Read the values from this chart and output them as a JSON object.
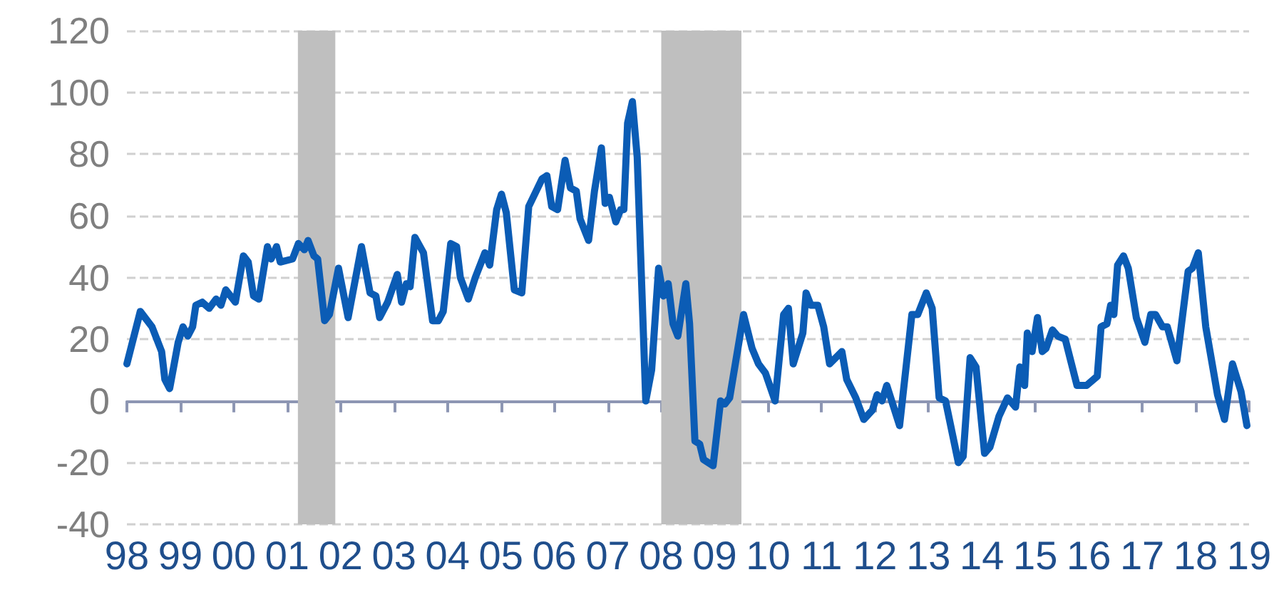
{
  "chart_data": {
    "type": "line",
    "xlim": [
      1998,
      2019
    ],
    "xticks": [
      {
        "value": 1998,
        "label": "98"
      },
      {
        "value": 1999,
        "label": "99"
      },
      {
        "value": 2000,
        "label": "00"
      },
      {
        "value": 2001,
        "label": "01"
      },
      {
        "value": 2002,
        "label": "02"
      },
      {
        "value": 2003,
        "label": "03"
      },
      {
        "value": 2004,
        "label": "04"
      },
      {
        "value": 2005,
        "label": "05"
      },
      {
        "value": 2006,
        "label": "06"
      },
      {
        "value": 2007,
        "label": "07"
      },
      {
        "value": 2008,
        "label": "08"
      },
      {
        "value": 2009,
        "label": "09"
      },
      {
        "value": 2010,
        "label": "10"
      },
      {
        "value": 2011,
        "label": "11"
      },
      {
        "value": 2012,
        "label": "12"
      },
      {
        "value": 2013,
        "label": "13"
      },
      {
        "value": 2014,
        "label": "14"
      },
      {
        "value": 2015,
        "label": "15"
      },
      {
        "value": 2016,
        "label": "16"
      },
      {
        "value": 2017,
        "label": "17"
      },
      {
        "value": 2018,
        "label": "18"
      },
      {
        "value": 2019,
        "label": "19"
      }
    ],
    "ylim": [
      -40,
      120
    ],
    "yticks": [
      -40,
      -20,
      0,
      20,
      40,
      60,
      80,
      100,
      120
    ],
    "grid": "y",
    "marker": "none",
    "line_style": "solid",
    "bands": [
      {
        "axis": "x",
        "from": 2001.2,
        "to": 2001.9,
        "color": "#bfbfbf"
      },
      {
        "axis": "x",
        "from": 2008.0,
        "to": 2009.5,
        "color": "#bfbfbf"
      }
    ],
    "series": [
      {
        "color": "#0b5cb5",
        "x": [
          1998.0,
          1998.25,
          1998.47,
          1998.65,
          1998.71,
          1998.8,
          1998.96,
          1999.05,
          1999.14,
          1999.23,
          1999.29,
          1999.41,
          1999.54,
          1999.67,
          1999.76,
          1999.85,
          2000.03,
          2000.18,
          2000.27,
          2000.37,
          2000.47,
          2000.63,
          2000.7,
          2000.8,
          2000.87,
          2001.1,
          2001.21,
          2001.32,
          2001.39,
          2001.5,
          2001.57,
          2001.7,
          2001.79,
          2001.96,
          2002.14,
          2002.39,
          2002.55,
          2002.66,
          2002.73,
          2002.88,
          2003.06,
          2003.14,
          2003.23,
          2003.3,
          2003.39,
          2003.55,
          2003.72,
          2003.83,
          2003.92,
          2004.06,
          2004.17,
          2004.24,
          2004.39,
          2004.52,
          2004.7,
          2004.79,
          2004.92,
          2005.01,
          2005.1,
          2005.25,
          2005.39,
          2005.52,
          2005.77,
          2005.86,
          2005.95,
          2006.06,
          2006.2,
          2006.3,
          2006.41,
          2006.48,
          2006.64,
          2006.75,
          2006.88,
          2006.95,
          2007.03,
          2007.15,
          2007.24,
          2007.3,
          2007.37,
          2007.46,
          2007.55,
          2007.71,
          2007.82,
          2007.95,
          2008.04,
          2008.13,
          2008.22,
          2008.31,
          2008.46,
          2008.53,
          2008.63,
          2008.72,
          2008.79,
          2008.97,
          2009.11,
          2009.19,
          2009.28,
          2009.54,
          2009.7,
          2009.82,
          2009.95,
          2010.13,
          2010.29,
          2010.38,
          2010.47,
          2010.65,
          2010.71,
          2010.8,
          2010.93,
          2011.04,
          2011.15,
          2011.38,
          2011.47,
          2011.64,
          2011.79,
          2011.95,
          2012.04,
          2012.13,
          2012.22,
          2012.46,
          2012.69,
          2012.8,
          2012.96,
          2013.07,
          2013.2,
          2013.32,
          2013.56,
          2013.65,
          2013.78,
          2013.89,
          2014.05,
          2014.15,
          2014.32,
          2014.48,
          2014.63,
          2014.71,
          2014.8,
          2014.85,
          2014.94,
          2015.04,
          2015.13,
          2015.2,
          2015.32,
          2015.42,
          2015.56,
          2015.78,
          2015.96,
          2016.16,
          2016.23,
          2016.34,
          2016.41,
          2016.47,
          2016.54,
          2016.65,
          2016.74,
          2016.89,
          2017.05,
          2017.16,
          2017.25,
          2017.38,
          2017.47,
          2017.65,
          2017.86,
          2017.94,
          2018.05,
          2018.19,
          2018.41,
          2018.54,
          2018.69,
          2018.85,
          2018.96
        ],
        "values": [
          12,
          29,
          24,
          16,
          7,
          4,
          19,
          24,
          21,
          24,
          31,
          32,
          30,
          33,
          31,
          36,
          32,
          47,
          45,
          34,
          33,
          50,
          46,
          50,
          45,
          46,
          51,
          49,
          52,
          47,
          46,
          26,
          28,
          43,
          27,
          50,
          35,
          34,
          27,
          32,
          41,
          32,
          38,
          37,
          53,
          48,
          26,
          26,
          29,
          51,
          50,
          40,
          33,
          40,
          48,
          44,
          62,
          67,
          61,
          36,
          35,
          63,
          72,
          73,
          63,
          62,
          78,
          69,
          68,
          59,
          52,
          68,
          82,
          64,
          66,
          58,
          62,
          62,
          90,
          97,
          79,
          0,
          10,
          43,
          34,
          38,
          25,
          21,
          38,
          25,
          -13,
          -14,
          -19,
          -21,
          0,
          -1,
          1,
          28,
          17,
          12,
          9,
          0,
          28,
          30,
          12,
          22,
          35,
          31,
          31,
          24,
          12,
          16,
          7,
          1,
          -6,
          -3,
          2,
          0,
          5,
          -8,
          28,
          28,
          35,
          30,
          1,
          0,
          -20,
          -18,
          14,
          11,
          -17,
          -15,
          -5,
          1,
          -2,
          11,
          5,
          22,
          16,
          27,
          16,
          17,
          23,
          21,
          20,
          5,
          5,
          8,
          24,
          25,
          31,
          28,
          44,
          47,
          43,
          27,
          19,
          28,
          28,
          24,
          24,
          13,
          42,
          43,
          48,
          24,
          2,
          -6,
          12,
          3,
          -8
        ]
      }
    ]
  }
}
